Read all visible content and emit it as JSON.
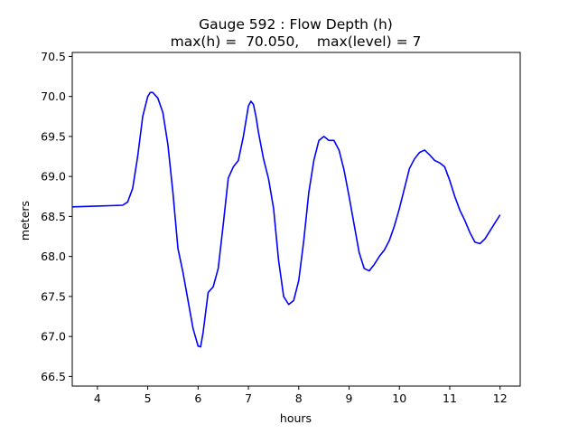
{
  "chart_data": {
    "type": "line",
    "title_line1": "Gauge 592 : Flow Depth (h)",
    "title_line2": "max(h) =  70.050,    max(level) = 7",
    "xlabel": "hours",
    "ylabel": "meters",
    "xlim": [
      3.5,
      12.4
    ],
    "ylim": [
      66.38,
      70.55
    ],
    "x_ticks": [
      4,
      5,
      6,
      7,
      8,
      9,
      10,
      11,
      12
    ],
    "x_tick_labels": [
      "4",
      "5",
      "6",
      "7",
      "8",
      "9",
      "10",
      "11",
      "12"
    ],
    "y_ticks": [
      66.5,
      67.0,
      67.5,
      68.0,
      68.5,
      69.0,
      69.5,
      70.0,
      70.5
    ],
    "y_tick_labels": [
      "66.5",
      "67.0",
      "67.5",
      "68.0",
      "68.5",
      "69.0",
      "69.5",
      "70.0",
      "70.5"
    ],
    "grid": false,
    "line_color": "#0000ff",
    "series": [
      {
        "x": [
          3.5,
          4.0,
          4.5,
          4.6,
          4.7,
          4.8,
          4.9,
          5.0,
          5.05,
          5.1,
          5.2,
          5.3,
          5.4,
          5.5,
          5.6,
          5.7,
          5.8,
          5.9,
          6.0,
          6.05,
          6.1,
          6.2,
          6.3,
          6.4,
          6.5,
          6.6,
          6.7,
          6.8,
          6.9,
          7.0,
          7.05,
          7.1,
          7.15,
          7.2,
          7.3,
          7.4,
          7.5,
          7.6,
          7.7,
          7.8,
          7.9,
          8.0,
          8.1,
          8.2,
          8.3,
          8.4,
          8.5,
          8.6,
          8.7,
          8.8,
          8.9,
          9.0,
          9.1,
          9.2,
          9.3,
          9.4,
          9.5,
          9.6,
          9.7,
          9.8,
          9.9,
          10.0,
          10.1,
          10.2,
          10.3,
          10.4,
          10.5,
          10.6,
          10.7,
          10.8,
          10.9,
          11.0,
          11.1,
          11.2,
          11.3,
          11.4,
          11.5,
          11.6,
          11.7,
          11.8,
          11.9,
          12.0
        ],
        "y": [
          68.62,
          68.63,
          68.64,
          68.68,
          68.85,
          69.25,
          69.75,
          70.0,
          70.05,
          70.05,
          69.98,
          69.8,
          69.4,
          68.8,
          68.1,
          67.8,
          67.45,
          67.1,
          66.88,
          66.87,
          67.05,
          67.55,
          67.62,
          67.85,
          68.4,
          68.98,
          69.12,
          69.2,
          69.5,
          69.88,
          69.94,
          69.9,
          69.75,
          69.55,
          69.22,
          68.97,
          68.6,
          67.95,
          67.5,
          67.4,
          67.45,
          67.7,
          68.2,
          68.8,
          69.2,
          69.45,
          69.5,
          69.45,
          69.45,
          69.33,
          69.08,
          68.75,
          68.4,
          68.05,
          67.85,
          67.82,
          67.9,
          68.0,
          68.08,
          68.2,
          68.38,
          68.6,
          68.85,
          69.1,
          69.22,
          69.3,
          69.33,
          69.27,
          69.2,
          69.17,
          69.12,
          68.95,
          68.75,
          68.58,
          68.45,
          68.3,
          68.18,
          68.16,
          68.22,
          68.32,
          68.42,
          68.52
        ]
      }
    ]
  }
}
